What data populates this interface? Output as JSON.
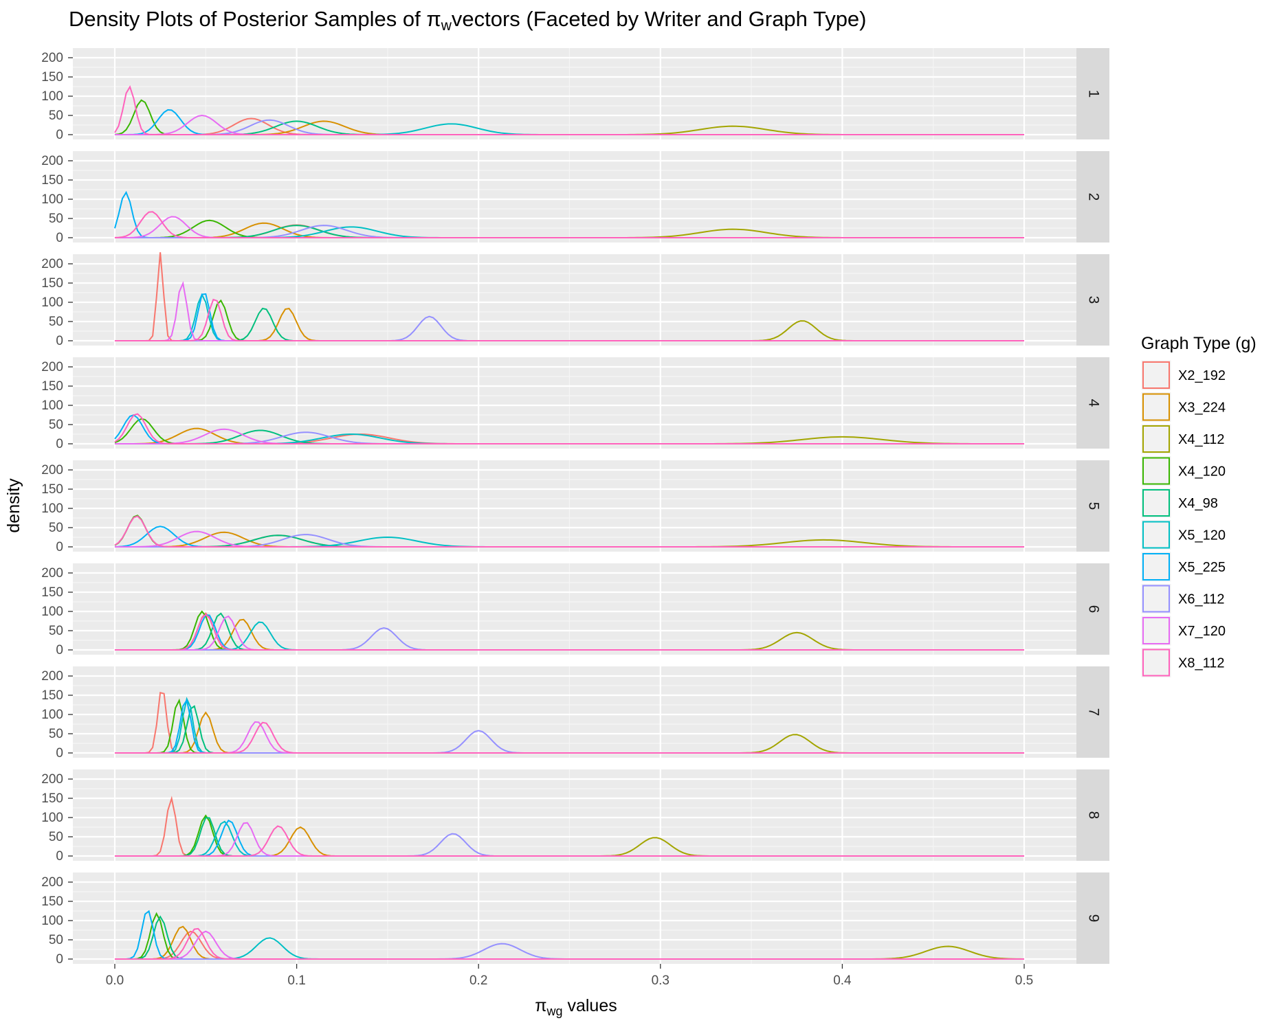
{
  "chart_data": {
    "type": "line",
    "title_prefix": "Density Plots of Posterior Samples of ",
    "title_symbol": "π",
    "title_sub": "w",
    "title_suffix": "vectors (Faceted by Writer and Graph Type)",
    "xlabel_symbol": "π",
    "xlabel_sub": "wg",
    "xlabel_suffix": " values",
    "ylabel": "density",
    "xlim": [
      0,
      0.5
    ],
    "ylim": [
      0,
      200
    ],
    "x_ticks": [
      "0.0",
      "0.1",
      "0.2",
      "0.3",
      "0.4",
      "0.5"
    ],
    "y_ticks": [
      "0",
      "50",
      "100",
      "150",
      "200"
    ],
    "grid": true,
    "legend_position": "right",
    "legend_title": "Graph Type (g)",
    "series": [
      {
        "name": "X2_192",
        "color": "#F8766D"
      },
      {
        "name": "X3_224",
        "color": "#D89000"
      },
      {
        "name": "X4_112",
        "color": "#A3A500"
      },
      {
        "name": "X4_120",
        "color": "#39B600"
      },
      {
        "name": "X4_98",
        "color": "#00BF7D"
      },
      {
        "name": "X5_120",
        "color": "#00BFC4"
      },
      {
        "name": "X5_225",
        "color": "#00B0F6"
      },
      {
        "name": "X6_112",
        "color": "#9590FF"
      },
      {
        "name": "X7_120",
        "color": "#E76BF3"
      },
      {
        "name": "X8_112",
        "color": "#FF62BC"
      }
    ],
    "facets": [
      {
        "label": "1",
        "peaks": [
          [
            0.075,
            42
          ],
          [
            0.115,
            35
          ],
          [
            0.34,
            22
          ],
          [
            0.015,
            90
          ],
          [
            0.1,
            35
          ],
          [
            0.185,
            28
          ],
          [
            0.03,
            65
          ],
          [
            0.085,
            38
          ],
          [
            0.048,
            50
          ],
          [
            0.008,
            125
          ]
        ]
      },
      {
        "label": "2",
        "peaks": [
          [
            0.1,
            33
          ],
          [
            0.082,
            38
          ],
          [
            0.34,
            22
          ],
          [
            0.052,
            45
          ],
          [
            0.1,
            32
          ],
          [
            0.13,
            28
          ],
          [
            0.006,
            118
          ],
          [
            0.115,
            32
          ],
          [
            0.032,
            55
          ],
          [
            0.02,
            68
          ]
        ]
      },
      {
        "label": "3",
        "peaks": [
          [
            0.025,
            230
          ],
          [
            0.095,
            85
          ],
          [
            0.378,
            52
          ],
          [
            0.058,
            105
          ],
          [
            0.082,
            85
          ],
          [
            0.048,
            120
          ],
          [
            0.049,
            128
          ],
          [
            0.173,
            63
          ],
          [
            0.037,
            152
          ],
          [
            0.055,
            110
          ]
        ]
      },
      {
        "label": "4",
        "peaks": [
          [
            0.135,
            25
          ],
          [
            0.045,
            40
          ],
          [
            0.4,
            18
          ],
          [
            0.015,
            65
          ],
          [
            0.08,
            35
          ],
          [
            0.13,
            25
          ],
          [
            0.01,
            75
          ],
          [
            0.105,
            30
          ],
          [
            0.06,
            38
          ],
          [
            0.012,
            78
          ]
        ]
      },
      {
        "label": "5",
        "peaks": [
          [
            0.09,
            30
          ],
          [
            0.06,
            38
          ],
          [
            0.39,
            18
          ],
          [
            0.012,
            82
          ],
          [
            0.09,
            30
          ],
          [
            0.15,
            25
          ],
          [
            0.025,
            53
          ],
          [
            0.105,
            32
          ],
          [
            0.045,
            40
          ],
          [
            0.012,
            80
          ]
        ]
      },
      {
        "label": "6",
        "peaks": [
          [
            0.05,
            95
          ],
          [
            0.07,
            80
          ],
          [
            0.375,
            45
          ],
          [
            0.048,
            100
          ],
          [
            0.058,
            95
          ],
          [
            0.08,
            73
          ],
          [
            0.051,
            93
          ],
          [
            0.148,
            57
          ],
          [
            0.062,
            88
          ],
          [
            0.05,
            92
          ]
        ]
      },
      {
        "label": "7",
        "peaks": [
          [
            0.026,
            172
          ],
          [
            0.05,
            105
          ],
          [
            0.374,
            48
          ],
          [
            0.035,
            138
          ],
          [
            0.043,
            125
          ],
          [
            0.04,
            142
          ],
          [
            0.039,
            140
          ],
          [
            0.2,
            58
          ],
          [
            0.078,
            82
          ],
          [
            0.082,
            80
          ]
        ]
      },
      {
        "label": "8",
        "peaks": [
          [
            0.031,
            150
          ],
          [
            0.102,
            75
          ],
          [
            0.297,
            48
          ],
          [
            0.05,
            105
          ],
          [
            0.051,
            103
          ],
          [
            0.06,
            90
          ],
          [
            0.063,
            93
          ],
          [
            0.186,
            58
          ],
          [
            0.072,
            88
          ],
          [
            0.09,
            78
          ]
        ]
      },
      {
        "label": "9",
        "peaks": [
          [
            0.042,
            72
          ],
          [
            0.037,
            85
          ],
          [
            0.458,
            33
          ],
          [
            0.023,
            118
          ],
          [
            0.025,
            110
          ],
          [
            0.085,
            55
          ],
          [
            0.018,
            128
          ],
          [
            0.213,
            40
          ],
          [
            0.05,
            72
          ],
          [
            0.045,
            80
          ]
        ]
      }
    ]
  }
}
